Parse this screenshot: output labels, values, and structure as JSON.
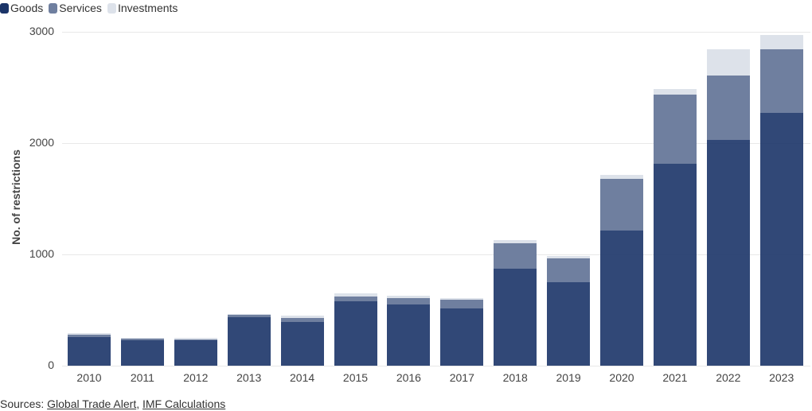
{
  "legend": {
    "items": [
      {
        "label": "Goods",
        "color": "#1b3468"
      },
      {
        "label": "Services",
        "color": "#6f7f9f"
      },
      {
        "label": "Investments",
        "color": "#dde2ea"
      }
    ]
  },
  "axis": {
    "ylabel": "No. of restrictions",
    "yticks": [
      "0",
      "1000",
      "2000",
      "3000"
    ]
  },
  "sources": {
    "prefix": "Sources: ",
    "link1": "Global Trade Alert",
    "separator": ", ",
    "link2": "IMF Calculations"
  },
  "chart_data": {
    "type": "bar",
    "stacked": true,
    "title": "",
    "xlabel": "",
    "ylabel": "No. of restrictions",
    "ylim": [
      0,
      3000
    ],
    "yticks": [
      0,
      1000,
      2000,
      3000
    ],
    "grid": true,
    "legend_position": "top-left",
    "categories": [
      "2010",
      "2011",
      "2012",
      "2013",
      "2014",
      "2015",
      "2016",
      "2017",
      "2018",
      "2019",
      "2020",
      "2021",
      "2022",
      "2023"
    ],
    "series": [
      {
        "name": "Goods",
        "color": "#1b3468",
        "values": [
          257,
          229,
          226,
          436,
          393,
          579,
          550,
          514,
          875,
          750,
          1214,
          1814,
          2029,
          2271
        ]
      },
      {
        "name": "Services",
        "color": "#6f7f9f",
        "values": [
          22,
          11,
          11,
          21,
          36,
          42,
          57,
          79,
          225,
          211,
          468,
          625,
          575,
          575
        ]
      },
      {
        "name": "Investments",
        "color": "#dde2ea",
        "values": [
          14,
          10,
          11,
          7,
          21,
          29,
          22,
          14,
          32,
          25,
          36,
          50,
          239,
          122
        ]
      }
    ]
  }
}
